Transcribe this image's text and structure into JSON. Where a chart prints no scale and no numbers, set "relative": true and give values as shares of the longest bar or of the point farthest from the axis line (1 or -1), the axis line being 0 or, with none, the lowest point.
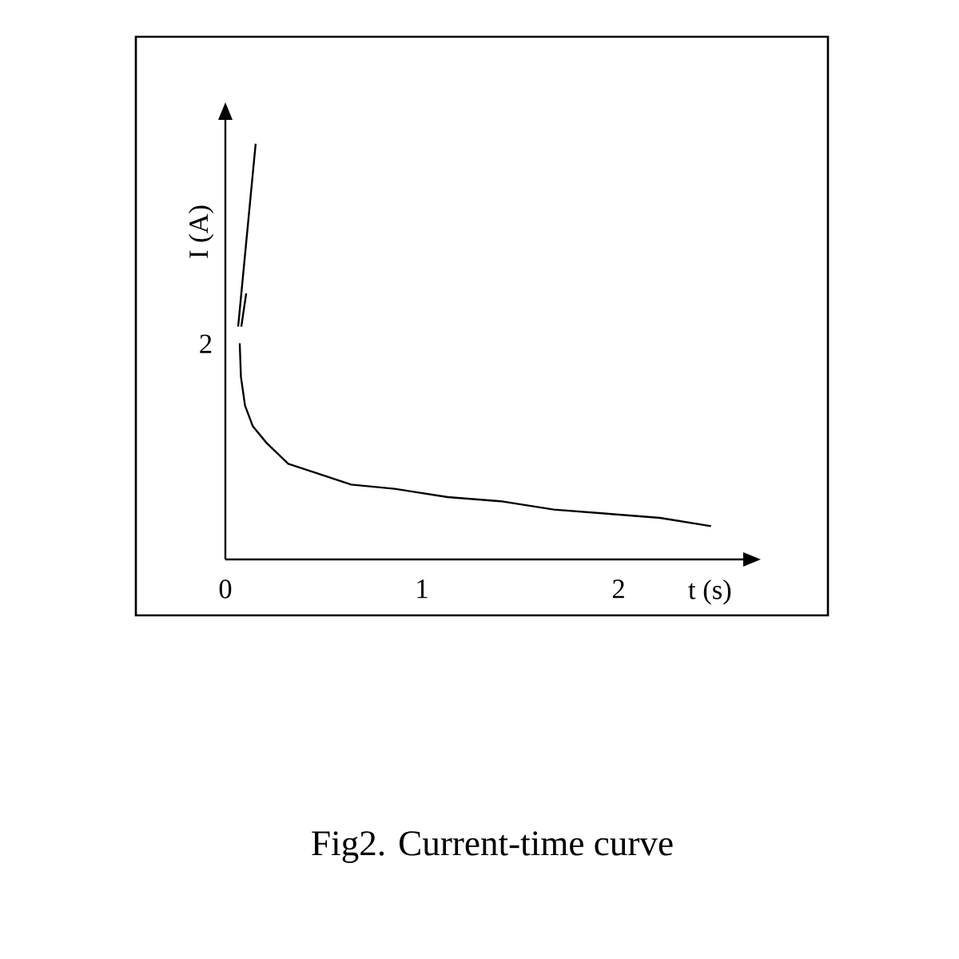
{
  "chart_data": {
    "type": "line",
    "title": "Fig2. Current-time    curve",
    "xlabel": "t (s)",
    "ylabel": "I (A)",
    "xlim": [
      0,
      2.65
    ],
    "xticks": [
      0,
      1,
      2
    ],
    "relative": true,
    "annotations": [
      "2"
    ],
    "marker": "none",
    "line_style": "solid",
    "series": [
      {
        "color": "#000000",
        "x": [
          0.065,
          0.154
        ],
        "values": [
          0.56,
          1.0
        ]
      },
      {
        "color": "#000000",
        "x": [
          0.081,
          0.106
        ],
        "values": [
          0.56,
          0.64
        ]
      },
      {
        "color": "#000000",
        "x": [
          0.073,
          0.079,
          0.1,
          0.14,
          0.21,
          0.32,
          0.45,
          0.64,
          0.86,
          1.13,
          1.4,
          1.67,
          1.94,
          2.21,
          2.47
        ],
        "values": [
          0.52,
          0.44,
          0.37,
          0.32,
          0.28,
          0.23,
          0.21,
          0.18,
          0.17,
          0.15,
          0.14,
          0.12,
          0.11,
          0.1,
          0.08
        ]
      }
    ]
  }
}
